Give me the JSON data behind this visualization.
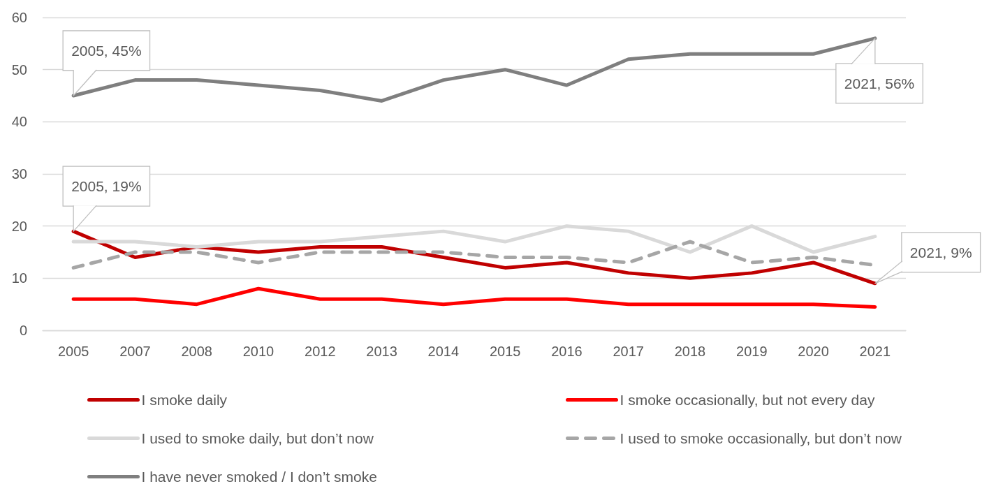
{
  "chart_data": {
    "type": "line",
    "categories": [
      "2005",
      "2007",
      "2008",
      "2010",
      "2012",
      "2013",
      "2014",
      "2015",
      "2016",
      "2017",
      "2018",
      "2019",
      "2020",
      "2021"
    ],
    "series": [
      {
        "name": "I smoke daily",
        "color": "#c00000",
        "values": [
          19,
          14,
          16,
          15,
          16,
          16,
          14,
          12,
          13,
          11,
          10,
          11,
          13,
          9
        ]
      },
      {
        "name": "I smoke occasionally, but not every day",
        "color": "#ff0000",
        "values": [
          6,
          6,
          5,
          8,
          6,
          6,
          5,
          6,
          6,
          5,
          5,
          5,
          5,
          4.5
        ]
      },
      {
        "name": "I used to smoke daily, but don’t now",
        "color": "#d9d9d9",
        "values": [
          17,
          17,
          16,
          17,
          17,
          18,
          19,
          17,
          20,
          19,
          15,
          20,
          15,
          18
        ]
      },
      {
        "name": "I used to smoke occasionally, but don’t now",
        "color": "#a6a6a6",
        "line_style": "dashed",
        "values": [
          12,
          15,
          15,
          13,
          15,
          15,
          15,
          14,
          14,
          13,
          17,
          13,
          14,
          12.5
        ]
      },
      {
        "name": "I have never smoked / I don’t smoke",
        "color": "#7f7f7f",
        "values": [
          45,
          48,
          48,
          47,
          46,
          44,
          48,
          50,
          47,
          52,
          53,
          53,
          53,
          56
        ]
      }
    ],
    "ylim": [
      0,
      60
    ],
    "yticks": [
      0,
      10,
      20,
      30,
      40,
      50,
      60
    ],
    "grid": "y",
    "legend": "bottom",
    "marker": "none",
    "line_style": "solid",
    "annotations": [
      {
        "text": "2005, 45%",
        "x": "2005",
        "y": 45
      },
      {
        "text": "2005, 19%",
        "x": "2005",
        "y": 19
      },
      {
        "text": "2021, 56%",
        "x": "2021",
        "y": 56
      },
      {
        "text": "2021, 9%",
        "x": "2021",
        "y": 9
      }
    ]
  }
}
